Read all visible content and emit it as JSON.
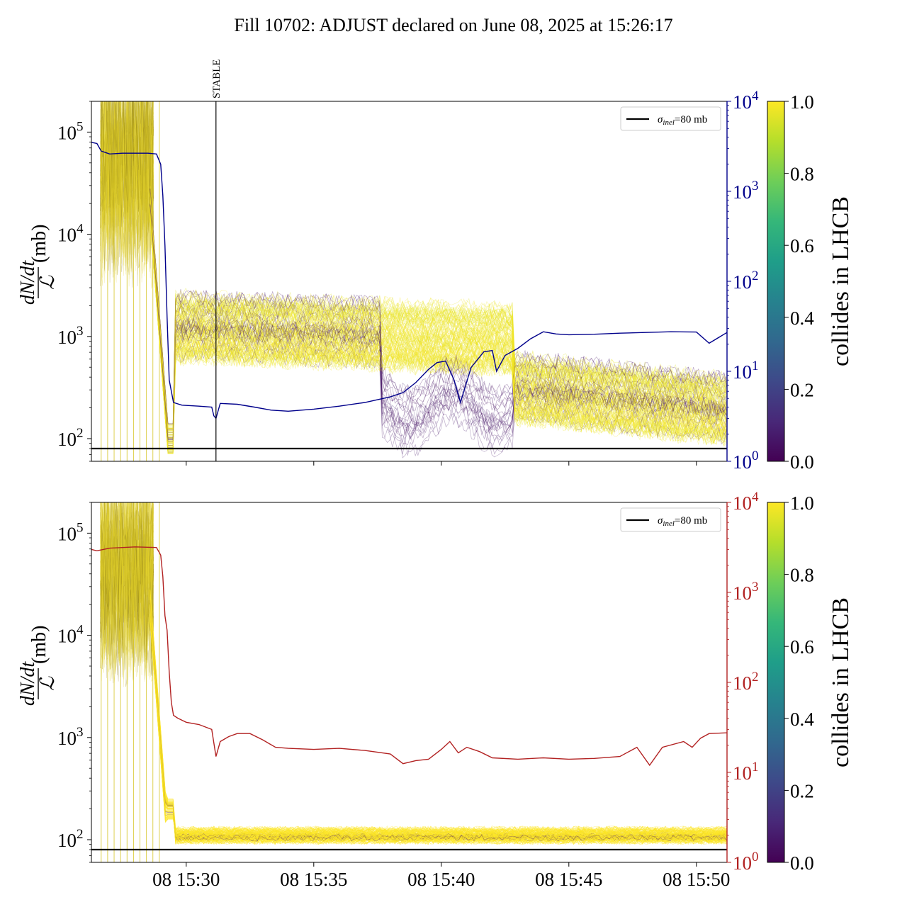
{
  "title": "Fill 10702: ADJUST declared on June 08, 2025 at 15:26:17",
  "chart_data": [
    {
      "type": "line",
      "panel": "top",
      "ylabel_numerator": "dN/dt",
      "ylabel_denominator": "ℒ",
      "ylabel_unit": "(mb)",
      "yscale": "log",
      "ylim": [
        60,
        200000
      ],
      "y_ticks": [
        {
          "base": "10",
          "exp": "2",
          "value": 100
        },
        {
          "base": "10",
          "exp": "3",
          "value": 1000
        },
        {
          "base": "10",
          "exp": "4",
          "value": 10000
        },
        {
          "base": "10",
          "exp": "5",
          "value": 100000
        }
      ],
      "right_axis": {
        "color": "#00008b",
        "scale": "log",
        "ylim": [
          1,
          10000
        ],
        "ticks": [
          {
            "base": "10",
            "exp": "0",
            "value": 1
          },
          {
            "base": "10",
            "exp": "1",
            "value": 10
          },
          {
            "base": "10",
            "exp": "2",
            "value": 100
          },
          {
            "base": "10",
            "exp": "3",
            "value": 1000
          },
          {
            "base": "10",
            "exp": "4",
            "value": 10000
          }
        ]
      },
      "xlim": [
        "15:26:17",
        "15:51:12"
      ],
      "x_ticks": [],
      "sigma_line": 80,
      "legend": {
        "label_sym": "σ",
        "label_sub": "inel",
        "label_rest": "=80 mb",
        "placement": "upper right"
      },
      "annotation": {
        "label": "STABLE",
        "time": "15:31:10"
      },
      "right_series": {
        "color": "#00008b",
        "points": [
          [
            "15:26:17",
            3500
          ],
          [
            "15:26:30",
            3400
          ],
          [
            "15:26:40",
            2800
          ],
          [
            "15:27:00",
            2600
          ],
          [
            "15:27:30",
            2650
          ],
          [
            "15:28:00",
            2650
          ],
          [
            "15:28:30",
            2650
          ],
          [
            "15:28:50",
            2600
          ],
          [
            "15:29:00",
            2000
          ],
          [
            "15:29:05",
            900
          ],
          [
            "15:29:10",
            250
          ],
          [
            "15:29:15",
            40
          ],
          [
            "15:29:20",
            8
          ],
          [
            "15:29:30",
            4.5
          ],
          [
            "15:29:50",
            4.2
          ],
          [
            "15:30:30",
            4.1
          ],
          [
            "15:31:00",
            4.0
          ],
          [
            "15:31:05",
            3.2
          ],
          [
            "15:31:10",
            3.0
          ],
          [
            "15:31:20",
            4.4
          ],
          [
            "15:32:00",
            4.3
          ],
          [
            "15:32:40",
            4.0
          ],
          [
            "15:33:20",
            3.7
          ],
          [
            "15:34:00",
            3.6
          ],
          [
            "15:35:00",
            3.8
          ],
          [
            "15:36:00",
            4.1
          ],
          [
            "15:37:00",
            4.5
          ],
          [
            "15:38:00",
            5.2
          ],
          [
            "15:38:30",
            5.8
          ],
          [
            "15:39:00",
            7.5
          ],
          [
            "15:39:30",
            10.5
          ],
          [
            "15:39:50",
            12.5
          ],
          [
            "15:40:10",
            13.0
          ],
          [
            "15:40:30",
            8.0
          ],
          [
            "15:40:45",
            4.5
          ],
          [
            "15:41:10",
            11.0
          ],
          [
            "15:41:40",
            16.5
          ],
          [
            "15:42:00",
            17.0
          ],
          [
            "15:42:10",
            10.0
          ],
          [
            "15:42:30",
            15.0
          ],
          [
            "15:43:00",
            18.0
          ],
          [
            "15:43:30",
            23.0
          ],
          [
            "15:44:00",
            27.5
          ],
          [
            "15:44:30",
            26.0
          ],
          [
            "15:45:00",
            25.5
          ],
          [
            "15:46:00",
            25.8
          ],
          [
            "15:47:00",
            26.5
          ],
          [
            "15:48:00",
            27.0
          ],
          [
            "15:49:00",
            27.5
          ],
          [
            "15:50:00",
            27.3
          ],
          [
            "15:50:30",
            20.5
          ],
          [
            "15:51:12",
            27.0
          ]
        ]
      }
    },
    {
      "type": "line",
      "panel": "bottom",
      "ylabel_numerator": "dN/dt",
      "ylabel_denominator": "ℒ",
      "ylabel_unit": "(mb)",
      "yscale": "log",
      "ylim": [
        60,
        200000
      ],
      "y_ticks": [
        {
          "base": "10",
          "exp": "2",
          "value": 100
        },
        {
          "base": "10",
          "exp": "3",
          "value": 1000
        },
        {
          "base": "10",
          "exp": "4",
          "value": 10000
        },
        {
          "base": "10",
          "exp": "5",
          "value": 100000
        }
      ],
      "right_axis": {
        "color": "#b22222",
        "scale": "log",
        "ylim": [
          1,
          10000
        ],
        "ticks": [
          {
            "base": "10",
            "exp": "0",
            "value": 1
          },
          {
            "base": "10",
            "exp": "1",
            "value": 10
          },
          {
            "base": "10",
            "exp": "2",
            "value": 100
          },
          {
            "base": "10",
            "exp": "3",
            "value": 1000
          },
          {
            "base": "10",
            "exp": "4",
            "value": 10000
          }
        ]
      },
      "xlim": [
        "15:26:17",
        "15:51:12"
      ],
      "x_ticks": [
        {
          "label": "08 15:30",
          "time": "15:30:00"
        },
        {
          "label": "08 15:35",
          "time": "15:35:00"
        },
        {
          "label": "08 15:40",
          "time": "15:40:00"
        },
        {
          "label": "08 15:45",
          "time": "15:45:00"
        },
        {
          "label": "08 15:50",
          "time": "15:50:00"
        }
      ],
      "sigma_line": 80,
      "legend": {
        "label_sym": "σ",
        "label_sub": "inel",
        "label_rest": "=80 mb",
        "placement": "upper right"
      },
      "right_series": {
        "color": "#b22222",
        "points": [
          [
            "15:26:17",
            3000
          ],
          [
            "15:26:30",
            2900
          ],
          [
            "15:27:00",
            3100
          ],
          [
            "15:27:30",
            3150
          ],
          [
            "15:28:00",
            3200
          ],
          [
            "15:28:50",
            3150
          ],
          [
            "15:29:00",
            2600
          ],
          [
            "15:29:05",
            1500
          ],
          [
            "15:29:10",
            550
          ],
          [
            "15:29:15",
            380
          ],
          [
            "15:29:20",
            130
          ],
          [
            "15:29:25",
            60
          ],
          [
            "15:29:30",
            43
          ],
          [
            "15:29:40",
            40
          ],
          [
            "15:30:00",
            36
          ],
          [
            "15:30:30",
            34
          ],
          [
            "15:31:00",
            30
          ],
          [
            "15:31:10",
            15
          ],
          [
            "15:31:20",
            22
          ],
          [
            "15:31:40",
            25
          ],
          [
            "15:32:00",
            27
          ],
          [
            "15:32:30",
            27
          ],
          [
            "15:33:00",
            23
          ],
          [
            "15:33:30",
            19
          ],
          [
            "15:34:00",
            18.5
          ],
          [
            "15:35:00",
            18.0
          ],
          [
            "15:36:00",
            18.5
          ],
          [
            "15:37:00",
            17.5
          ],
          [
            "15:38:00",
            16.0
          ],
          [
            "15:38:30",
            12.5
          ],
          [
            "15:39:00",
            13.5
          ],
          [
            "15:39:30",
            14.0
          ],
          [
            "15:40:00",
            18.0
          ],
          [
            "15:40:20",
            22.0
          ],
          [
            "15:40:40",
            16.5
          ],
          [
            "15:41:00",
            19.0
          ],
          [
            "15:41:30",
            17.0
          ],
          [
            "15:42:00",
            14.5
          ],
          [
            "15:43:00",
            14.0
          ],
          [
            "15:44:00",
            14.5
          ],
          [
            "15:45:00",
            14.0
          ],
          [
            "15:46:00",
            14.3
          ],
          [
            "15:47:00",
            15.0
          ],
          [
            "15:47:40",
            19.0
          ],
          [
            "15:48:10",
            12.0
          ],
          [
            "15:48:40",
            19.0
          ],
          [
            "15:49:30",
            22.0
          ],
          [
            "15:49:50",
            19.0
          ],
          [
            "15:50:10",
            24.0
          ],
          [
            "15:50:30",
            27.0
          ],
          [
            "15:51:12",
            27.5
          ]
        ]
      }
    }
  ],
  "colorbar": {
    "label": "collides in LHCB",
    "ticks": [
      "0.0",
      "0.2",
      "0.4",
      "0.6",
      "0.8",
      "1.0"
    ],
    "tick_values": [
      0.0,
      0.2,
      0.4,
      0.6,
      0.8,
      1.0
    ],
    "range": [
      0.0,
      1.0
    ],
    "colormap": [
      "#440154",
      "#482878",
      "#3e4989",
      "#31688e",
      "#26828e",
      "#1f9e89",
      "#35b779",
      "#6ece58",
      "#b5de2b",
      "#fde725"
    ]
  }
}
